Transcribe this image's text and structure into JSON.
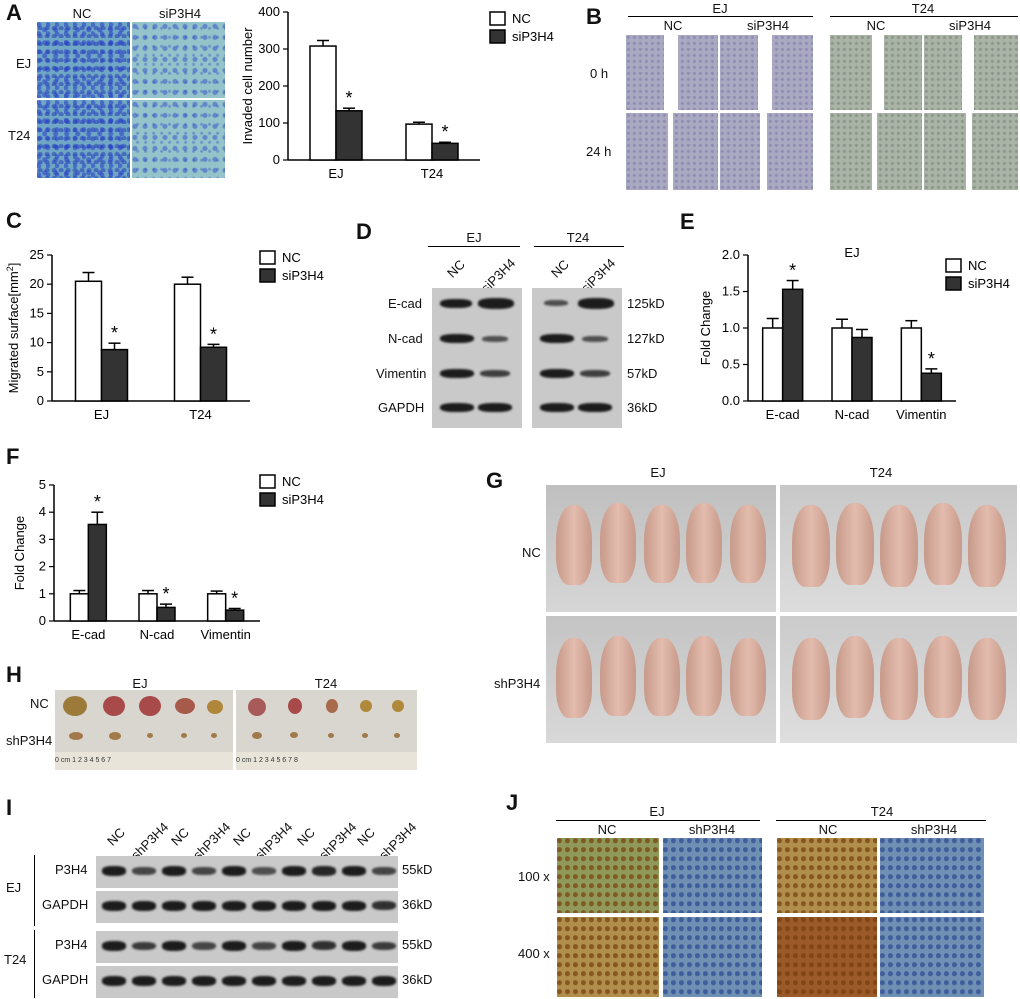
{
  "panels": {
    "A": "A",
    "B": "B",
    "C": "C",
    "D": "D",
    "E": "E",
    "F": "F",
    "G": "G",
    "H": "H",
    "I": "I",
    "J": "J"
  },
  "A": {
    "col_labels": [
      "NC",
      "siP3H4"
    ],
    "row_labels": [
      "EJ",
      "T24"
    ],
    "chart": {
      "ylabel": "Invaded cell number",
      "ticks": [
        "0",
        "100",
        "200",
        "300",
        "400"
      ],
      "categories": [
        "EJ",
        "T24"
      ],
      "legend": [
        "NC",
        "siP3H4"
      ],
      "star": "*"
    }
  },
  "B": {
    "groups": [
      "EJ",
      "T24"
    ],
    "col_labels": [
      "NC",
      "siP3H4",
      "NC",
      "siP3H4"
    ],
    "row_labels": [
      "0 h",
      "24 h"
    ]
  },
  "C": {
    "ylabel": "Migrated surface[mm",
    "ylabel_sup": "2",
    "ylabel_end": "]",
    "ticks": [
      "0",
      "5",
      "10",
      "15",
      "20",
      "25"
    ],
    "categories": [
      "EJ",
      "T24"
    ],
    "legend": [
      "NC",
      "siP3H4"
    ],
    "star": "*"
  },
  "D": {
    "groups": [
      "EJ",
      "T24"
    ],
    "lanes": [
      "NC",
      "siP3H4",
      "NC",
      "siP3H4"
    ],
    "proteins": [
      "E-cad",
      "N-cad",
      "Vimentin",
      "GAPDH"
    ],
    "sizes": [
      "125kD",
      "127kD",
      "57kD",
      "36kD"
    ]
  },
  "E": {
    "title": "EJ",
    "ylabel": "Fold Change",
    "ticks": [
      "0.0",
      "0.5",
      "1.0",
      "1.5",
      "2.0"
    ],
    "categories": [
      "E-cad",
      "N-cad",
      "Vimentin"
    ],
    "legend": [
      "NC",
      "siP3H4"
    ],
    "star": "*"
  },
  "F": {
    "ylabel": "Fold Change",
    "ticks": [
      "0",
      "1",
      "2",
      "3",
      "4",
      "5"
    ],
    "categories": [
      "E-cad",
      "N-cad",
      "Vimentin"
    ],
    "legend": [
      "NC",
      "siP3H4"
    ],
    "star": "*"
  },
  "G": {
    "groups": [
      "EJ",
      "T24"
    ],
    "row_labels": [
      "NC",
      "shP3H4"
    ]
  },
  "H": {
    "groups": [
      "EJ",
      "T24"
    ],
    "row_labels": [
      "NC",
      "shP3H4"
    ],
    "ruler_left": "0 cm  1    2    3    4    5    6    7",
    "ruler_right": "0 cm  1    2    3    4    5    6    7    8"
  },
  "I": {
    "lanes": [
      "NC",
      "shP3H4",
      "NC",
      "shP3H4",
      "NC",
      "shP3H4",
      "NC",
      "shP3H4",
      "NC",
      "shP3H4"
    ],
    "groups": [
      "EJ",
      "T24"
    ],
    "proteins": [
      "P3H4",
      "GAPDH",
      "P3H4",
      "GAPDH"
    ],
    "sizes": [
      "55kD",
      "36kD",
      "55kD",
      "36kD"
    ]
  },
  "J": {
    "groups": [
      "EJ",
      "T24"
    ],
    "col_labels": [
      "NC",
      "shP3H4",
      "NC",
      "shP3H4"
    ],
    "row_labels": [
      "100 x",
      "400 x"
    ]
  },
  "chart_data": [
    {
      "type": "bar",
      "panel": "A",
      "categories": [
        "EJ",
        "T24"
      ],
      "ylabel": "Invaded cell number",
      "ylim": [
        0,
        400
      ],
      "series": [
        {
          "name": "NC",
          "values": [
            308,
            97
          ],
          "errors": [
            15,
            5
          ]
        },
        {
          "name": "siP3H4",
          "values": [
            133,
            45
          ],
          "errors": [
            7,
            3
          ]
        }
      ],
      "significant": [
        false,
        true,
        false,
        true
      ]
    },
    {
      "type": "bar",
      "panel": "C",
      "categories": [
        "EJ",
        "T24"
      ],
      "ylabel": "Migrated surface[mm2]",
      "ylim": [
        0,
        25
      ],
      "series": [
        {
          "name": "NC",
          "values": [
            20.5,
            20.0
          ],
          "errors": [
            1.5,
            1.2
          ]
        },
        {
          "name": "siP3H4",
          "values": [
            8.8,
            9.2
          ],
          "errors": [
            1.1,
            0.5
          ]
        }
      ],
      "significant": [
        false,
        true,
        false,
        true
      ]
    },
    {
      "type": "bar",
      "panel": "E",
      "title": "EJ",
      "categories": [
        "E-cad",
        "N-cad",
        "Vimentin"
      ],
      "ylabel": "Fold Change",
      "ylim": [
        0,
        2.0
      ],
      "series": [
        {
          "name": "NC",
          "values": [
            1.0,
            1.0,
            1.0
          ],
          "errors": [
            0.13,
            0.12,
            0.1
          ]
        },
        {
          "name": "siP3H4",
          "values": [
            1.53,
            0.87,
            0.38
          ],
          "errors": [
            0.12,
            0.11,
            0.06
          ]
        }
      ],
      "significant": [
        false,
        true,
        false,
        false,
        false,
        true
      ]
    },
    {
      "type": "bar",
      "panel": "F",
      "categories": [
        "E-cad",
        "N-cad",
        "Vimentin"
      ],
      "ylabel": "Fold Change",
      "ylim": [
        0,
        5
      ],
      "series": [
        {
          "name": "NC",
          "values": [
            1.0,
            1.0,
            1.0
          ],
          "errors": [
            0.12,
            0.12,
            0.1
          ]
        },
        {
          "name": "siP3H4",
          "values": [
            3.55,
            0.5,
            0.4
          ],
          "errors": [
            0.45,
            0.12,
            0.06
          ]
        }
      ],
      "significant": [
        false,
        true,
        false,
        true,
        false,
        true
      ]
    }
  ]
}
